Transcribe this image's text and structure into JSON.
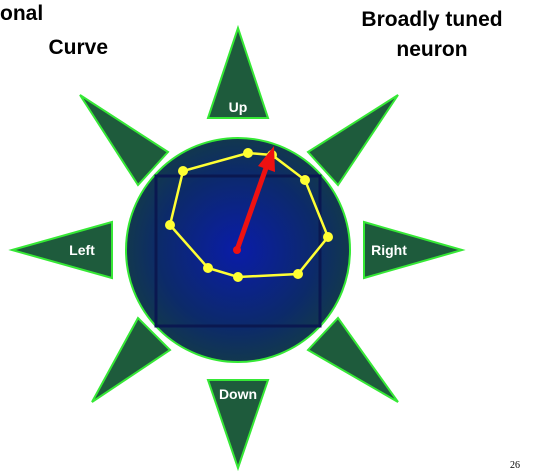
{
  "title_left": {
    "lines": [
      "onal",
      "Curve"
    ]
  },
  "title_right": {
    "lines": [
      "Broadly tuned",
      "neuron"
    ]
  },
  "directions": {
    "up": "Up",
    "down": "Down",
    "left": "Left",
    "right": "Right"
  },
  "page_number": "26"
}
